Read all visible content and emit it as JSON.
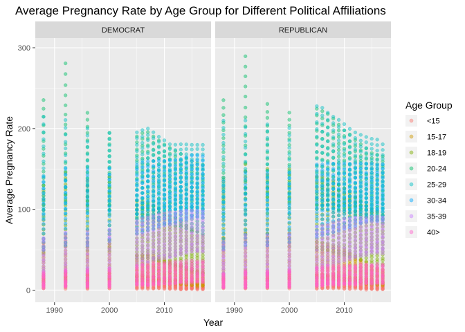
{
  "chart_data": {
    "type": "scatter",
    "title": "Average Pregnancy Rate by Age Group for Different Political Affiliations",
    "xlabel": "Year",
    "ylabel": "Average Pregnancy Rate",
    "xlim": [
      1986.5,
      2018.5
    ],
    "ylim": [
      -15,
      312
    ],
    "x_ticks": [
      1990,
      2000,
      2010
    ],
    "y_ticks": [
      0,
      100,
      200,
      300
    ],
    "grid": true,
    "legend": {
      "title": "Age Group",
      "position": "right",
      "entries": [
        "<15",
        "15-17",
        "18-19",
        "20-24",
        "25-29",
        "30-34",
        "35-39",
        "40>"
      ]
    },
    "colors": {
      "<15": "#F8766D",
      "15-17": "#CD9600",
      "18-19": "#7CAE00",
      "20-24": "#00BE67",
      "25-29": "#00BFC4",
      "30-34": "#00A9FF",
      "35-39": "#C77CFF",
      "40>": "#FF61CC"
    },
    "panels": [
      {
        "label": "DEMOCRAT",
        "series": [
          {
            "name": "<15",
            "years": [
              1988,
              1992,
              1996,
              2000,
              2005,
              2006,
              2007,
              2008,
              2009,
              2010,
              2011,
              2012,
              2013,
              2014,
              2015,
              2016,
              2017
            ],
            "min": [
              2,
              2,
              2,
              2,
              2,
              2,
              2,
              2,
              2,
              2,
              2,
              2,
              1,
              1,
              1,
              1,
              1
            ],
            "max": [
              18,
              22,
              20,
              22,
              18,
              18,
              17,
              17,
              16,
              15,
              14,
              13,
              12,
              11,
              10,
              10,
              9
            ]
          },
          {
            "name": "15-17",
            "years": [
              1988,
              1992,
              1996,
              2000,
              2005,
              2006,
              2007,
              2008,
              2009,
              2010,
              2011,
              2012,
              2013,
              2014,
              2015,
              2016,
              2017
            ],
            "min": [
              10,
              12,
              10,
              12,
              12,
              12,
              12,
              11,
              11,
              10,
              9,
              8,
              7,
              6,
              6,
              5,
              5
            ],
            "max": [
              58,
              65,
              60,
              62,
              44,
              44,
              44,
              42,
              40,
              38,
              35,
              32,
              30,
              28,
              26,
              24,
              22
            ]
          },
          {
            "name": "18-19",
            "years": [
              1988,
              1992,
              1996,
              2000,
              2005,
              2006,
              2007,
              2008,
              2009,
              2010,
              2011,
              2012,
              2013,
              2014,
              2015,
              2016,
              2017
            ],
            "min": [
              45,
              55,
              50,
              48,
              40,
              40,
              40,
              38,
              36,
              34,
              32,
              30,
              28,
              26,
              24,
              22,
              20
            ],
            "max": [
              130,
              145,
              135,
              140,
              110,
              110,
              108,
              105,
              100,
              96,
              92,
              88,
              84,
              80,
              76,
              72,
              68
            ]
          },
          {
            "name": "20-24",
            "years": [
              1988,
              1992,
              1996,
              2000,
              2005,
              2006,
              2007,
              2008,
              2009,
              2010,
              2011,
              2012,
              2013,
              2014,
              2015,
              2016,
              2017
            ],
            "min": [
              100,
              110,
              105,
              100,
              90,
              90,
              90,
              88,
              86,
              84,
              82,
              80,
              78,
              76,
              74,
              72,
              70
            ],
            "max": [
              235,
              280,
              220,
              195,
              190,
              195,
              195,
              190,
              185,
              180,
              176,
              172,
              168,
              164,
              160,
              158,
              155
            ]
          },
          {
            "name": "25-29",
            "years": [
              1988,
              1992,
              1996,
              2000,
              2005,
              2006,
              2007,
              2008,
              2009,
              2010,
              2011,
              2012,
              2013,
              2014,
              2015,
              2016,
              2017
            ],
            "min": [
              90,
              95,
              95,
              95,
              95,
              98,
              100,
              100,
              100,
              100,
              100,
              100,
              100,
              100,
              100,
              100,
              100
            ],
            "max": [
              215,
              210,
              200,
              195,
              195,
              198,
              200,
              195,
              190,
              185,
              180,
              180,
              180,
              180,
              180,
              180,
              180
            ]
          },
          {
            "name": "30-34",
            "years": [
              1988,
              1992,
              1996,
              2000,
              2005,
              2006,
              2007,
              2008,
              2009,
              2010,
              2011,
              2012,
              2013,
              2014,
              2015,
              2016,
              2017
            ],
            "min": [
              50,
              55,
              55,
              60,
              70,
              72,
              74,
              76,
              78,
              80,
              82,
              84,
              86,
              88,
              90,
              90,
              90
            ],
            "max": [
              140,
              150,
              150,
              150,
              155,
              158,
              160,
              160,
              160,
              160,
              160,
              160,
              162,
              164,
              166,
              166,
              166
            ]
          },
          {
            "name": "35-39",
            "years": [
              1988,
              1992,
              1996,
              2000,
              2005,
              2006,
              2007,
              2008,
              2009,
              2010,
              2011,
              2012,
              2013,
              2014,
              2015,
              2016,
              2017
            ],
            "min": [
              20,
              22,
              22,
              24,
              30,
              32,
              34,
              36,
              38,
              40,
              40,
              42,
              44,
              46,
              48,
              48,
              48
            ],
            "max": [
              65,
              72,
              72,
              75,
              85,
              88,
              90,
              92,
              94,
              95,
              96,
              96,
              97,
              98,
              98,
              98,
              98
            ]
          },
          {
            "name": "40>",
            "years": [
              1988,
              1992,
              1996,
              2000,
              2005,
              2006,
              2007,
              2008,
              2009,
              2010,
              2011,
              2012,
              2013,
              2014,
              2015,
              2016,
              2017
            ],
            "min": [
              3,
              4,
              4,
              4,
              6,
              6,
              6,
              7,
              7,
              8,
              8,
              8,
              9,
              9,
              9,
              10,
              10
            ],
            "max": [
              22,
              25,
              25,
              26,
              30,
              32,
              32,
              33,
              33,
              34,
              34,
              35,
              35,
              36,
              36,
              36,
              36
            ]
          }
        ]
      },
      {
        "label": "REPUBLICAN",
        "series": [
          {
            "name": "<15",
            "years": [
              1988,
              1992,
              1996,
              2000,
              2005,
              2006,
              2007,
              2008,
              2009,
              2010,
              2011,
              2012,
              2013,
              2014,
              2015,
              2016,
              2017
            ],
            "min": [
              2,
              2,
              2,
              2,
              2,
              2,
              2,
              2,
              2,
              2,
              2,
              2,
              1,
              1,
              1,
              1,
              1
            ],
            "max": [
              20,
              24,
              22,
              24,
              20,
              20,
              19,
              19,
              18,
              17,
              16,
              15,
              14,
              13,
              12,
              11,
              10
            ]
          },
          {
            "name": "15-17",
            "years": [
              1988,
              1992,
              1996,
              2000,
              2005,
              2006,
              2007,
              2008,
              2009,
              2010,
              2011,
              2012,
              2013,
              2014,
              2015,
              2016,
              2017
            ],
            "min": [
              12,
              14,
              12,
              14,
              14,
              14,
              14,
              13,
              13,
              12,
              11,
              10,
              9,
              8,
              7,
              6,
              6
            ],
            "max": [
              65,
              72,
              70,
              70,
              60,
              58,
              56,
              54,
              52,
              50,
              46,
              42,
              38,
              34,
              30,
              28,
              26
            ]
          },
          {
            "name": "18-19",
            "years": [
              1988,
              1992,
              1996,
              2000,
              2005,
              2006,
              2007,
              2008,
              2009,
              2010,
              2011,
              2012,
              2013,
              2014,
              2015,
              2016,
              2017
            ],
            "min": [
              50,
              60,
              55,
              55,
              50,
              50,
              50,
              48,
              46,
              44,
              42,
              40,
              38,
              36,
              34,
              32,
              30
            ],
            "max": [
              140,
              155,
              150,
              150,
              140,
              140,
              138,
              135,
              130,
              125,
              120,
              115,
              110,
              105,
              100,
              96,
              92
            ]
          },
          {
            "name": "20-24",
            "years": [
              1988,
              1992,
              1996,
              2000,
              2005,
              2006,
              2007,
              2008,
              2009,
              2010,
              2011,
              2012,
              2013,
              2014,
              2015,
              2016,
              2017
            ],
            "min": [
              110,
              120,
              115,
              110,
              105,
              105,
              105,
              102,
              100,
              98,
              96,
              94,
              92,
              90,
              88,
              86,
              84
            ],
            "max": [
              235,
              290,
              230,
              220,
              225,
              222,
              218,
              212,
              205,
              198,
              192,
              186,
              180,
              175,
              170,
              168,
              165
            ]
          },
          {
            "name": "25-29",
            "years": [
              1988,
              1992,
              1996,
              2000,
              2005,
              2006,
              2007,
              2008,
              2009,
              2010,
              2011,
              2012,
              2013,
              2014,
              2015,
              2016,
              2017
            ],
            "min": [
              90,
              95,
              95,
              95,
              100,
              100,
              100,
              100,
              100,
              100,
              100,
              100,
              100,
              100,
              100,
              100,
              100
            ],
            "max": [
              210,
              210,
              205,
              200,
              228,
              225,
              220,
              215,
              210,
              205,
              200,
              195,
              192,
              190,
              188,
              186,
              180
            ]
          },
          {
            "name": "30-34",
            "years": [
              1988,
              1992,
              1996,
              2000,
              2005,
              2006,
              2007,
              2008,
              2009,
              2010,
              2011,
              2012,
              2013,
              2014,
              2015,
              2016,
              2017
            ],
            "min": [
              50,
              55,
              55,
              60,
              65,
              68,
              70,
              72,
              74,
              76,
              78,
              80,
              82,
              84,
              86,
              86,
              86
            ],
            "max": [
              135,
              145,
              145,
              145,
              155,
              155,
              156,
              156,
              156,
              156,
              156,
              156,
              156,
              156,
              156,
              156,
              156
            ]
          },
          {
            "name": "35-39",
            "years": [
              1988,
              1992,
              1996,
              2000,
              2005,
              2006,
              2007,
              2008,
              2009,
              2010,
              2011,
              2012,
              2013,
              2014,
              2015,
              2016,
              2017
            ],
            "min": [
              18,
              20,
              20,
              22,
              26,
              28,
              30,
              32,
              34,
              36,
              38,
              40,
              42,
              44,
              46,
              46,
              46
            ],
            "max": [
              60,
              68,
              68,
              70,
              78,
              80,
              82,
              84,
              86,
              88,
              88,
              89,
              90,
              90,
              90,
              90,
              90
            ]
          },
          {
            "name": "40>",
            "years": [
              1988,
              1992,
              1996,
              2000,
              2005,
              2006,
              2007,
              2008,
              2009,
              2010,
              2011,
              2012,
              2013,
              2014,
              2015,
              2016,
              2017
            ],
            "min": [
              3,
              3,
              4,
              4,
              5,
              5,
              6,
              6,
              6,
              7,
              7,
              7,
              8,
              8,
              8,
              8,
              8
            ],
            "max": [
              20,
              24,
              24,
              25,
              28,
              28,
              30,
              30,
              30,
              30,
              31,
              31,
              32,
              32,
              32,
              32,
              32
            ]
          }
        ]
      }
    ]
  }
}
